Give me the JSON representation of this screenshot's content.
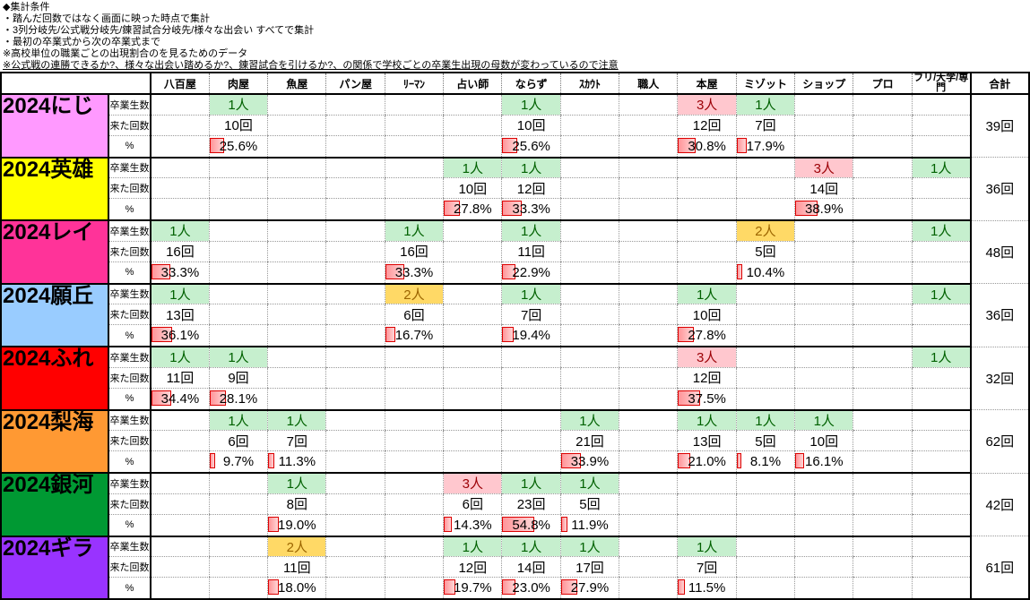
{
  "notes": [
    "◆集計条件",
    "・踏んだ回数ではなく画面に映った時点で集計",
    "・3列分岐先/公式戦分岐先/錬習試合分岐先/様々な出会い すべてで集計",
    "・最初の卒業式から次の卒業式まで",
    "※高校単位の職業ごとの出現割合のを見るためのデータ",
    "※公式戦の連勝できるか?、様々な出会い踏めるか?、錬習試合を引けるか?、の関係で学校ごとの卒業生出現の母数が変わっているので注意"
  ],
  "table": {
    "columns": [
      "八百屋",
      "肉屋",
      "魚屋",
      "パン屋",
      "ﾘｰﾏﾝ",
      "占い師",
      "ならず",
      "ｽｶｳﾄ",
      "職人",
      "本屋",
      "ミゾット",
      "ショップ",
      "プロ",
      "フリ/大学/専門",
      "合計"
    ],
    "row_labels": {
      "graduates": "卒業生数",
      "visits": "来た回数",
      "percent": "%"
    },
    "cell_styles": {
      "good": {
        "bg": "#C6EFCE",
        "text": "#006100"
      },
      "bad": {
        "bg": "#FFC7CE",
        "text": "#9C0006"
      },
      "neutral": {
        "bg": "#FFD966",
        "text": "#9C6500"
      }
    },
    "databar": {
      "border": "#DC0000",
      "fill_from": "#FF9599",
      "fill_to": "#FFD6D7"
    },
    "groups": [
      {
        "label": "2024にじ",
        "color": "#FF99FF",
        "total": "39回",
        "cells": {
          "1": {
            "people": "1人",
            "style": "good",
            "count": "10回",
            "percent": "25.6%",
            "percent_value": 25.6
          },
          "6": {
            "people": "1人",
            "style": "good",
            "count": "10回",
            "percent": "25.6%",
            "percent_value": 25.6
          },
          "9": {
            "people": "3人",
            "style": "bad",
            "count": "12回",
            "percent": "30.8%",
            "percent_value": 30.8
          },
          "10": {
            "people": "1人",
            "style": "good",
            "count": "7回",
            "percent": "17.9%",
            "percent_value": 17.9
          }
        }
      },
      {
        "label": "2024英雄",
        "color": "#FFFF00",
        "total": "36回",
        "cells": {
          "5": {
            "people": "1人",
            "style": "good",
            "count": "10回",
            "percent": "27.8%",
            "percent_value": 27.8
          },
          "6": {
            "people": "1人",
            "style": "good",
            "count": "12回",
            "percent": "33.3%",
            "percent_value": 33.3
          },
          "11": {
            "people": "3人",
            "style": "bad",
            "count": "14回",
            "percent": "38.9%",
            "percent_value": 38.9
          },
          "13": {
            "people": "1人",
            "style": "good"
          }
        }
      },
      {
        "label": "2024レイ",
        "color": "#FF3399",
        "total": "48回",
        "cells": {
          "0": {
            "people": "1人",
            "style": "good",
            "count": "16回",
            "percent": "33.3%",
            "percent_value": 33.3
          },
          "4": {
            "people": "1人",
            "style": "good",
            "count": "16回",
            "percent": "33.3%",
            "percent_value": 33.3
          },
          "6": {
            "people": "1人",
            "style": "good",
            "count": "11回",
            "percent": "22.9%",
            "percent_value": 22.9
          },
          "10": {
            "people": "2人",
            "style": "neutral",
            "count": "5回",
            "percent": "10.4%",
            "percent_value": 10.4
          },
          "13": {
            "people": "1人",
            "style": "good"
          }
        }
      },
      {
        "label": "2024願丘",
        "color": "#99CCFF",
        "total": "36回",
        "cells": {
          "0": {
            "people": "1人",
            "style": "good",
            "count": "13回",
            "percent": "36.1%",
            "percent_value": 36.1
          },
          "4": {
            "people": "2人",
            "style": "neutral",
            "count": "6回",
            "percent": "16.7%",
            "percent_value": 16.7
          },
          "6": {
            "people": "1人",
            "style": "good",
            "count": "7回",
            "percent": "19.4%",
            "percent_value": 19.4
          },
          "9": {
            "people": "1人",
            "style": "good",
            "count": "10回",
            "percent": "27.8%",
            "percent_value": 27.8
          },
          "13": {
            "people": "1人",
            "style": "good"
          }
        }
      },
      {
        "label": "2024ふれ",
        "color": "#FF0000",
        "total": "32回",
        "cells": {
          "0": {
            "people": "1人",
            "style": "good",
            "count": "11回",
            "percent": "34.4%",
            "percent_value": 34.4
          },
          "1": {
            "people": "1人",
            "style": "good",
            "count": "9回",
            "percent": "28.1%",
            "percent_value": 28.1
          },
          "9": {
            "people": "3人",
            "style": "bad",
            "count": "12回",
            "percent": "37.5%",
            "percent_value": 37.5
          },
          "13": {
            "people": "1人",
            "style": "good"
          }
        }
      },
      {
        "label": "2024梨海",
        "color": "#FF9933",
        "total": "62回",
        "cells": {
          "1": {
            "people": "1人",
            "style": "good",
            "count": "6回",
            "percent": "9.7%",
            "percent_value": 9.7
          },
          "2": {
            "people": "1人",
            "style": "good",
            "count": "7回",
            "percent": "11.3%",
            "percent_value": 11.3
          },
          "7": {
            "people": "1人",
            "style": "good",
            "count": "21回",
            "percent": "33.9%",
            "percent_value": 33.9
          },
          "9": {
            "people": "1人",
            "style": "good",
            "count": "13回",
            "percent": "21.0%",
            "percent_value": 21.0
          },
          "10": {
            "people": "1人",
            "style": "good",
            "count": "5回",
            "percent": "8.1%",
            "percent_value": 8.1
          },
          "11": {
            "people": "1人",
            "style": "good",
            "count": "10回",
            "percent": "16.1%",
            "percent_value": 16.1
          }
        }
      },
      {
        "label": "2024銀河",
        "color": "#009933",
        "total": "42回",
        "cells": {
          "2": {
            "people": "1人",
            "style": "good",
            "count": "8回",
            "percent": "19.0%",
            "percent_value": 19.0
          },
          "5": {
            "people": "3人",
            "style": "bad",
            "count": "6回",
            "percent": "14.3%",
            "percent_value": 14.3
          },
          "6": {
            "people": "1人",
            "style": "good",
            "count": "23回",
            "percent": "54.8%",
            "percent_value": 54.8
          },
          "7": {
            "people": "1人",
            "style": "good",
            "count": "5回",
            "percent": "11.9%",
            "percent_value": 11.9
          }
        }
      },
      {
        "label": "2024ギラ",
        "color": "#9933FF",
        "total": "61回",
        "cells": {
          "2": {
            "people": "2人",
            "style": "neutral",
            "count": "11回",
            "percent": "18.0%",
            "percent_value": 18.0
          },
          "5": {
            "people": "1人",
            "style": "good",
            "count": "12回",
            "percent": "19.7%",
            "percent_value": 19.7
          },
          "6": {
            "people": "1人",
            "style": "good",
            "count": "14回",
            "percent": "23.0%",
            "percent_value": 23.0
          },
          "7": {
            "people": "1人",
            "style": "good",
            "count": "17回",
            "percent": "27.9%",
            "percent_value": 27.9
          },
          "9": {
            "people": "1人",
            "style": "good",
            "count": "7回",
            "percent": "11.5%",
            "percent_value": 11.5
          }
        }
      }
    ]
  }
}
